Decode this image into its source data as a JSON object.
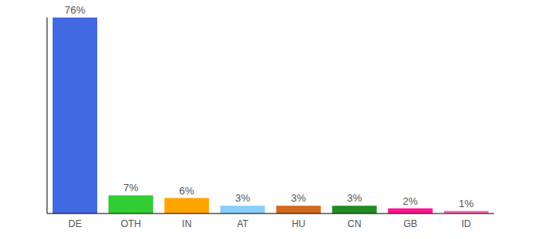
{
  "chart_data": {
    "type": "bar",
    "categories": [
      "DE",
      "OTH",
      "IN",
      "AT",
      "HU",
      "CN",
      "GB",
      "ID"
    ],
    "values": [
      76,
      7,
      6,
      3,
      3,
      3,
      2,
      1
    ],
    "value_labels": [
      "76%",
      "7%",
      "6%",
      "3%",
      "3%",
      "3%",
      "2%",
      "1%"
    ],
    "colors": [
      "#4169e1",
      "#32cd32",
      "#ffa500",
      "#87cefa",
      "#d2691e",
      "#228b22",
      "#ff1493",
      "#ff69b4"
    ],
    "ylim": [
      0,
      76
    ],
    "data_labels": true,
    "tick_labels": "x"
  }
}
